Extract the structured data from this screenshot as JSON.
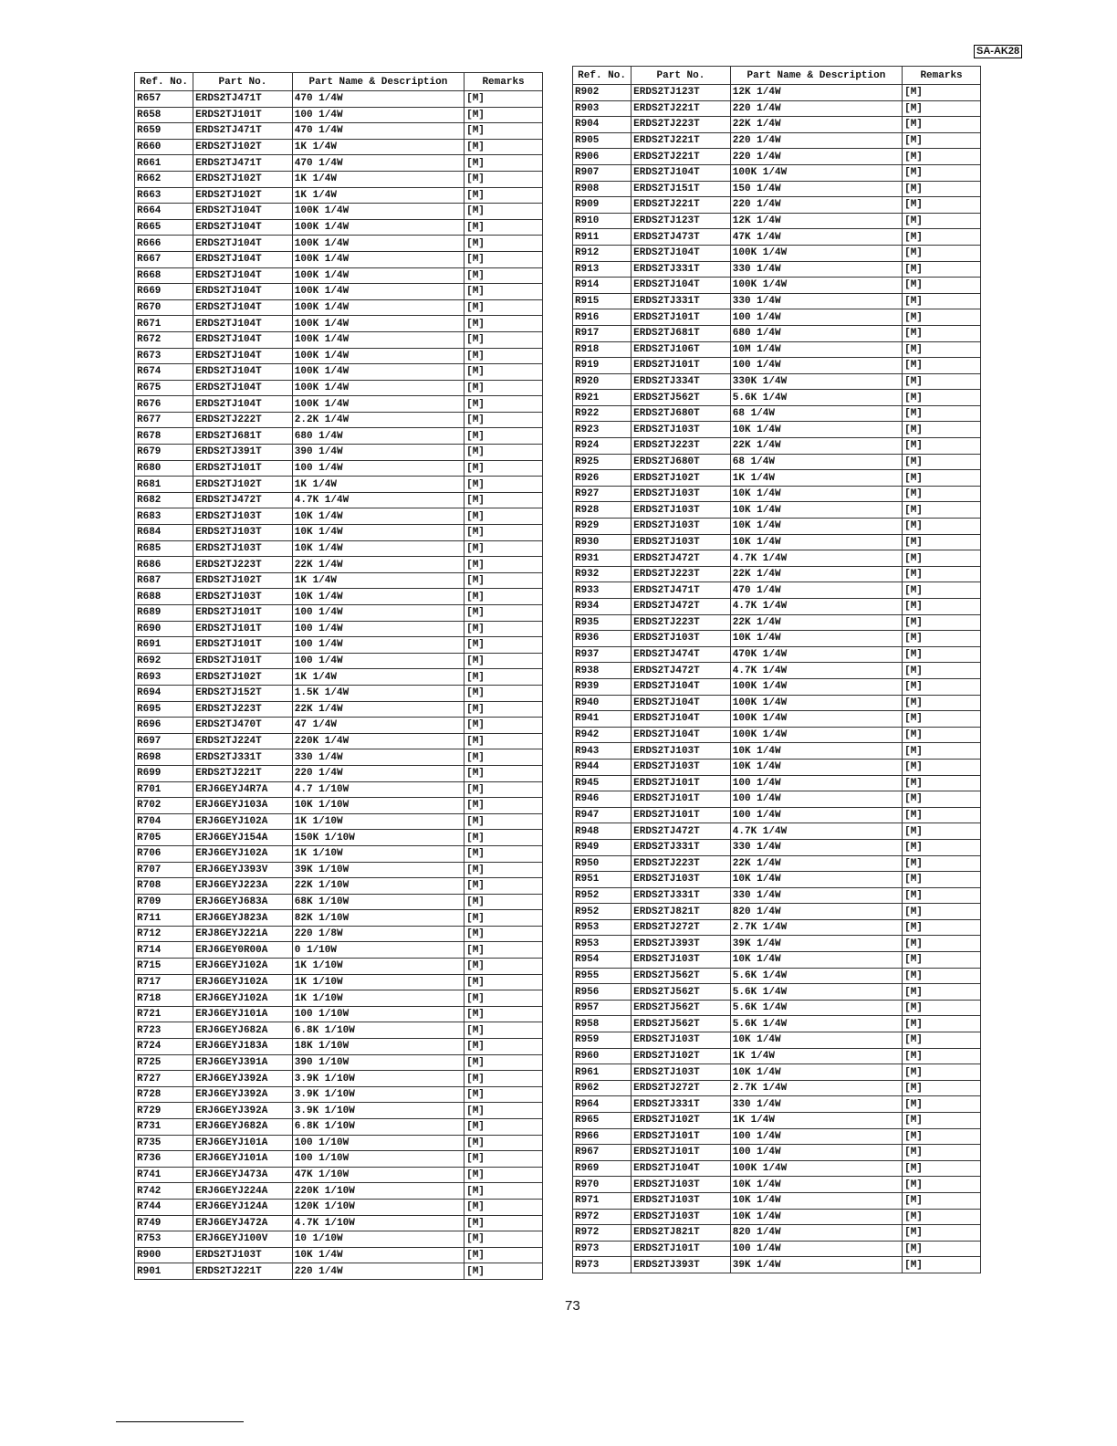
{
  "model_badge": "SA-AK28",
  "page_number": "73",
  "headers": [
    "Ref. No.",
    "Part No.",
    "Part Name & Description",
    "Remarks"
  ],
  "left_table": [
    [
      "R657",
      "ERDS2TJ471T",
      "470 1/4W",
      "[M]"
    ],
    [
      "R658",
      "ERDS2TJ101T",
      "100 1/4W",
      "[M]"
    ],
    [
      "R659",
      "ERDS2TJ471T",
      "470 1/4W",
      "[M]"
    ],
    [
      "R660",
      "ERDS2TJ102T",
      "1K 1/4W",
      "[M]"
    ],
    [
      "R661",
      "ERDS2TJ471T",
      "470 1/4W",
      "[M]"
    ],
    [
      "R662",
      "ERDS2TJ102T",
      "1K 1/4W",
      "[M]"
    ],
    [
      "R663",
      "ERDS2TJ102T",
      "1K 1/4W",
      "[M]"
    ],
    [
      "R664",
      "ERDS2TJ104T",
      "100K 1/4W",
      "[M]"
    ],
    [
      "R665",
      "ERDS2TJ104T",
      "100K 1/4W",
      "[M]"
    ],
    [
      "R666",
      "ERDS2TJ104T",
      "100K 1/4W",
      "[M]"
    ],
    [
      "R667",
      "ERDS2TJ104T",
      "100K 1/4W",
      "[M]"
    ],
    [
      "R668",
      "ERDS2TJ104T",
      "100K 1/4W",
      "[M]"
    ],
    [
      "R669",
      "ERDS2TJ104T",
      "100K 1/4W",
      "[M]"
    ],
    [
      "R670",
      "ERDS2TJ104T",
      "100K 1/4W",
      "[M]"
    ],
    [
      "R671",
      "ERDS2TJ104T",
      "100K 1/4W",
      "[M]"
    ],
    [
      "R672",
      "ERDS2TJ104T",
      "100K 1/4W",
      "[M]"
    ],
    [
      "R673",
      "ERDS2TJ104T",
      "100K 1/4W",
      "[M]"
    ],
    [
      "R674",
      "ERDS2TJ104T",
      "100K 1/4W",
      "[M]"
    ],
    [
      "R675",
      "ERDS2TJ104T",
      "100K 1/4W",
      "[M]"
    ],
    [
      "R676",
      "ERDS2TJ104T",
      "100K 1/4W",
      "[M]"
    ],
    [
      "R677",
      "ERDS2TJ222T",
      "2.2K 1/4W",
      "[M]"
    ],
    [
      "R678",
      "ERDS2TJ681T",
      "680 1/4W",
      "[M]"
    ],
    [
      "R679",
      "ERDS2TJ391T",
      "390 1/4W",
      "[M]"
    ],
    [
      "R680",
      "ERDS2TJ101T",
      "100 1/4W",
      "[M]"
    ],
    [
      "R681",
      "ERDS2TJ102T",
      "1K 1/4W",
      "[M]"
    ],
    [
      "R682",
      "ERDS2TJ472T",
      "4.7K 1/4W",
      "[M]"
    ],
    [
      "R683",
      "ERDS2TJ103T",
      "10K 1/4W",
      "[M]"
    ],
    [
      "R684",
      "ERDS2TJ103T",
      "10K 1/4W",
      "[M]"
    ],
    [
      "R685",
      "ERDS2TJ103T",
      "10K 1/4W",
      "[M]"
    ],
    [
      "R686",
      "ERDS2TJ223T",
      "22K 1/4W",
      "[M]"
    ],
    [
      "R687",
      "ERDS2TJ102T",
      "1K 1/4W",
      "[M]"
    ],
    [
      "R688",
      "ERDS2TJ103T",
      "10K 1/4W",
      "[M]"
    ],
    [
      "R689",
      "ERDS2TJ101T",
      "100 1/4W",
      "[M]"
    ],
    [
      "R690",
      "ERDS2TJ101T",
      "100 1/4W",
      "[M]"
    ],
    [
      "R691",
      "ERDS2TJ101T",
      "100 1/4W",
      "[M]"
    ],
    [
      "R692",
      "ERDS2TJ101T",
      "100 1/4W",
      "[M]"
    ],
    [
      "R693",
      "ERDS2TJ102T",
      "1K 1/4W",
      "[M]"
    ],
    [
      "R694",
      "ERDS2TJ152T",
      "1.5K 1/4W",
      "[M]"
    ],
    [
      "R695",
      "ERDS2TJ223T",
      "22K 1/4W",
      "[M]"
    ],
    [
      "R696",
      "ERDS2TJ470T",
      "47 1/4W",
      "[M]"
    ],
    [
      "R697",
      "ERDS2TJ224T",
      "220K 1/4W",
      "[M]"
    ],
    [
      "R698",
      "ERDS2TJ331T",
      "330 1/4W",
      "[M]"
    ],
    [
      "R699",
      "ERDS2TJ221T",
      "220 1/4W",
      "[M]"
    ],
    [
      "R701",
      "ERJ6GEYJ4R7A",
      "4.7 1/10W",
      "[M]"
    ],
    [
      "R702",
      "ERJ6GEYJ103A",
      "10K 1/10W",
      "[M]"
    ],
    [
      "R704",
      "ERJ6GEYJ102A",
      "1K 1/10W",
      "[M]"
    ],
    [
      "R705",
      "ERJ6GEYJ154A",
      "150K 1/10W",
      "[M]"
    ],
    [
      "R706",
      "ERJ6GEYJ102A",
      "1K 1/10W",
      "[M]"
    ],
    [
      "R707",
      "ERJ6GEYJ393V",
      "39K 1/10W",
      "[M]"
    ],
    [
      "R708",
      "ERJ6GEYJ223A",
      "22K 1/10W",
      "[M]"
    ],
    [
      "R709",
      "ERJ6GEYJ683A",
      "68K 1/10W",
      "[M]"
    ],
    [
      "R711",
      "ERJ6GEYJ823A",
      "82K 1/10W",
      "[M]"
    ],
    [
      "R712",
      "ERJ8GEYJ221A",
      "220 1/8W",
      "[M]"
    ],
    [
      "R714",
      "ERJ6GEY0R00A",
      "0 1/10W",
      "[M]"
    ],
    [
      "R715",
      "ERJ6GEYJ102A",
      "1K 1/10W",
      "[M]"
    ],
    [
      "R717",
      "ERJ6GEYJ102A",
      "1K 1/10W",
      "[M]"
    ],
    [
      "R718",
      "ERJ6GEYJ102A",
      "1K 1/10W",
      "[M]"
    ],
    [
      "R721",
      "ERJ6GEYJ101A",
      "100 1/10W",
      "[M]"
    ],
    [
      "R723",
      "ERJ6GEYJ682A",
      "6.8K 1/10W",
      "[M]"
    ],
    [
      "R724",
      "ERJ6GEYJ183A",
      "18K 1/10W",
      "[M]"
    ],
    [
      "R725",
      "ERJ6GEYJ391A",
      "390 1/10W",
      "[M]"
    ],
    [
      "R727",
      "ERJ6GEYJ392A",
      "3.9K 1/10W",
      "[M]"
    ],
    [
      "R728",
      "ERJ6GEYJ392A",
      "3.9K 1/10W",
      "[M]"
    ],
    [
      "R729",
      "ERJ6GEYJ392A",
      "3.9K 1/10W",
      "[M]"
    ],
    [
      "R731",
      "ERJ6GEYJ682A",
      "6.8K 1/10W",
      "[M]"
    ],
    [
      "R735",
      "ERJ6GEYJ101A",
      "100 1/10W",
      "[M]"
    ],
    [
      "R736",
      "ERJ6GEYJ101A",
      "100 1/10W",
      "[M]"
    ],
    [
      "R741",
      "ERJ6GEYJ473A",
      "47K 1/10W",
      "[M]"
    ],
    [
      "R742",
      "ERJ6GEYJ224A",
      "220K 1/10W",
      "[M]"
    ],
    [
      "R744",
      "ERJ6GEYJ124A",
      "120K 1/10W",
      "[M]"
    ],
    [
      "R749",
      "ERJ6GEYJ472A",
      "4.7K 1/10W",
      "[M]"
    ],
    [
      "R753",
      "ERJ6GEYJ100V",
      "10 1/10W",
      "[M]"
    ],
    [
      "R900",
      "ERDS2TJ103T",
      "10K 1/4W",
      "[M]"
    ],
    [
      "R901",
      "ERDS2TJ221T",
      "220 1/4W",
      "[M]"
    ]
  ],
  "right_table": [
    [
      "R902",
      "ERDS2TJ123T",
      "12K 1/4W",
      "[M]"
    ],
    [
      "R903",
      "ERDS2TJ221T",
      "220 1/4W",
      "[M]"
    ],
    [
      "R904",
      "ERDS2TJ223T",
      "22K 1/4W",
      "[M]"
    ],
    [
      "R905",
      "ERDS2TJ221T",
      "220 1/4W",
      "[M]"
    ],
    [
      "R906",
      "ERDS2TJ221T",
      "220 1/4W",
      "[M]"
    ],
    [
      "R907",
      "ERDS2TJ104T",
      "100K 1/4W",
      "[M]"
    ],
    [
      "R908",
      "ERDS2TJ151T",
      "150 1/4W",
      "[M]"
    ],
    [
      "R909",
      "ERDS2TJ221T",
      "220 1/4W",
      "[M]"
    ],
    [
      "R910",
      "ERDS2TJ123T",
      "12K 1/4W",
      "[M]"
    ],
    [
      "R911",
      "ERDS2TJ473T",
      "47K 1/4W",
      "[M]"
    ],
    [
      "R912",
      "ERDS2TJ104T",
      "100K 1/4W",
      "[M]"
    ],
    [
      "R913",
      "ERDS2TJ331T",
      "330 1/4W",
      "[M]"
    ],
    [
      "R914",
      "ERDS2TJ104T",
      "100K 1/4W",
      "[M]"
    ],
    [
      "R915",
      "ERDS2TJ331T",
      "330 1/4W",
      "[M]"
    ],
    [
      "R916",
      "ERDS2TJ101T",
      "100 1/4W",
      "[M]"
    ],
    [
      "R917",
      "ERDS2TJ681T",
      "680 1/4W",
      "[M]"
    ],
    [
      "R918",
      "ERDS2TJ106T",
      "10M 1/4W",
      "[M]"
    ],
    [
      "R919",
      "ERDS2TJ101T",
      "100 1/4W",
      "[M]"
    ],
    [
      "R920",
      "ERDS2TJ334T",
      "330K 1/4W",
      "[M]"
    ],
    [
      "R921",
      "ERDS2TJ562T",
      "5.6K 1/4W",
      "[M]"
    ],
    [
      "R922",
      "ERDS2TJ680T",
      "68 1/4W",
      "[M]"
    ],
    [
      "R923",
      "ERDS2TJ103T",
      "10K 1/4W",
      "[M]"
    ],
    [
      "R924",
      "ERDS2TJ223T",
      "22K 1/4W",
      "[M]"
    ],
    [
      "R925",
      "ERDS2TJ680T",
      "68 1/4W",
      "[M]"
    ],
    [
      "R926",
      "ERDS2TJ102T",
      "1K 1/4W",
      "[M]"
    ],
    [
      "R927",
      "ERDS2TJ103T",
      "10K 1/4W",
      "[M]"
    ],
    [
      "R928",
      "ERDS2TJ103T",
      "10K 1/4W",
      "[M]"
    ],
    [
      "R929",
      "ERDS2TJ103T",
      "10K 1/4W",
      "[M]"
    ],
    [
      "R930",
      "ERDS2TJ103T",
      "10K 1/4W",
      "[M]"
    ],
    [
      "R931",
      "ERDS2TJ472T",
      "4.7K 1/4W",
      "[M]"
    ],
    [
      "R932",
      "ERDS2TJ223T",
      "22K 1/4W",
      "[M]"
    ],
    [
      "R933",
      "ERDS2TJ471T",
      "470 1/4W",
      "[M]"
    ],
    [
      "R934",
      "ERDS2TJ472T",
      "4.7K 1/4W",
      "[M]"
    ],
    [
      "R935",
      "ERDS2TJ223T",
      "22K 1/4W",
      "[M]"
    ],
    [
      "R936",
      "ERDS2TJ103T",
      "10K 1/4W",
      "[M]"
    ],
    [
      "R937",
      "ERDS2TJ474T",
      "470K 1/4W",
      "[M]"
    ],
    [
      "R938",
      "ERDS2TJ472T",
      "4.7K 1/4W",
      "[M]"
    ],
    [
      "R939",
      "ERDS2TJ104T",
      "100K 1/4W",
      "[M]"
    ],
    [
      "R940",
      "ERDS2TJ104T",
      "100K 1/4W",
      "[M]"
    ],
    [
      "R941",
      "ERDS2TJ104T",
      "100K 1/4W",
      "[M]"
    ],
    [
      "R942",
      "ERDS2TJ104T",
      "100K 1/4W",
      "[M]"
    ],
    [
      "R943",
      "ERDS2TJ103T",
      "10K 1/4W",
      "[M]"
    ],
    [
      "R944",
      "ERDS2TJ103T",
      "10K 1/4W",
      "[M]"
    ],
    [
      "R945",
      "ERDS2TJ101T",
      "100 1/4W",
      "[M]"
    ],
    [
      "R946",
      "ERDS2TJ101T",
      "100 1/4W",
      "[M]"
    ],
    [
      "R947",
      "ERDS2TJ101T",
      "100 1/4W",
      "[M]"
    ],
    [
      "R948",
      "ERDS2TJ472T",
      "4.7K 1/4W",
      "[M]"
    ],
    [
      "R949",
      "ERDS2TJ331T",
      "330 1/4W",
      "[M]"
    ],
    [
      "R950",
      "ERDS2TJ223T",
      "22K 1/4W",
      "[M]"
    ],
    [
      "R951",
      "ERDS2TJ103T",
      "10K 1/4W",
      "[M]"
    ],
    [
      "R952",
      "ERDS2TJ331T",
      "330 1/4W",
      "[M]"
    ],
    [
      "R952",
      "ERDS2TJ821T",
      "820 1/4W",
      "[M]"
    ],
    [
      "R953",
      "ERDS2TJ272T",
      "2.7K 1/4W",
      "[M]"
    ],
    [
      "R953",
      "ERDS2TJ393T",
      "39K 1/4W",
      "[M]"
    ],
    [
      "R954",
      "ERDS2TJ103T",
      "10K 1/4W",
      "[M]"
    ],
    [
      "R955",
      "ERDS2TJ562T",
      "5.6K 1/4W",
      "[M]"
    ],
    [
      "R956",
      "ERDS2TJ562T",
      "5.6K 1/4W",
      "[M]"
    ],
    [
      "R957",
      "ERDS2TJ562T",
      "5.6K 1/4W",
      "[M]"
    ],
    [
      "R958",
      "ERDS2TJ562T",
      "5.6K 1/4W",
      "[M]"
    ],
    [
      "R959",
      "ERDS2TJ103T",
      "10K 1/4W",
      "[M]"
    ],
    [
      "R960",
      "ERDS2TJ102T",
      "1K 1/4W",
      "[M]"
    ],
    [
      "R961",
      "ERDS2TJ103T",
      "10K 1/4W",
      "[M]"
    ],
    [
      "R962",
      "ERDS2TJ272T",
      "2.7K 1/4W",
      "[M]"
    ],
    [
      "R964",
      "ERDS2TJ331T",
      "330 1/4W",
      "[M]"
    ],
    [
      "R965",
      "ERDS2TJ102T",
      "1K 1/4W",
      "[M]"
    ],
    [
      "R966",
      "ERDS2TJ101T",
      "100 1/4W",
      "[M]"
    ],
    [
      "R967",
      "ERDS2TJ101T",
      "100 1/4W",
      "[M]"
    ],
    [
      "R969",
      "ERDS2TJ104T",
      "100K 1/4W",
      "[M]"
    ],
    [
      "R970",
      "ERDS2TJ103T",
      "10K 1/4W",
      "[M]"
    ],
    [
      "R971",
      "ERDS2TJ103T",
      "10K 1/4W",
      "[M]"
    ],
    [
      "R972",
      "ERDS2TJ103T",
      "10K 1/4W",
      "[M]"
    ],
    [
      "R972",
      "ERDS2TJ821T",
      "820 1/4W",
      "[M]"
    ],
    [
      "R973",
      "ERDS2TJ101T",
      "100 1/4W",
      "[M]"
    ],
    [
      "R973",
      "ERDS2TJ393T",
      "39K 1/4W",
      "[M]"
    ]
  ]
}
